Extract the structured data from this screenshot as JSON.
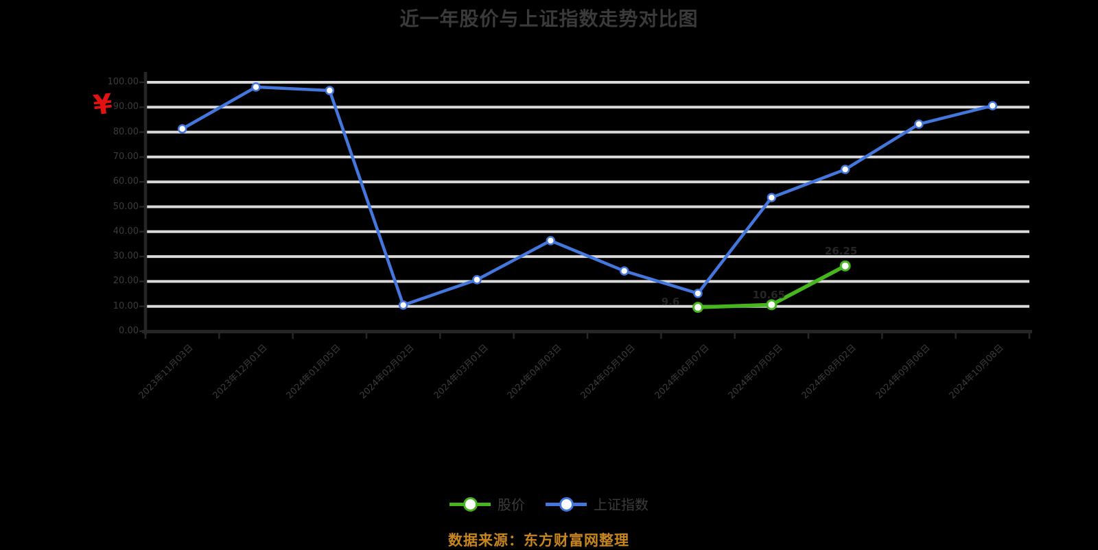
{
  "colors": {
    "background": "#000000",
    "grid": "#d9d9d9",
    "axis": "#262626",
    "text": "#3c3c3c",
    "title_text": "#3a3a3a",
    "data_label_text": "#262626",
    "footer_orange": "#c8861f",
    "currency_red": "#e21212",
    "series_green": "#47b51e",
    "series_blue": "#4477dd",
    "marker_fill": "#ffffff"
  },
  "chart_data": {
    "type": "line",
    "title": "近一年股价与上证指数走势对比图",
    "y_axis_symbol": "¥",
    "ylim": [
      0,
      100
    ],
    "y_ticks": [
      100,
      90,
      80,
      70,
      60,
      50,
      40,
      30,
      20,
      10,
      0
    ],
    "y_tick_labels": [
      "100.00",
      "90.00",
      "80.00",
      "70.00",
      "60.00",
      "50.00",
      "40.00",
      "30.00",
      "20.00",
      "10.00",
      "0.00"
    ],
    "grid": "horizontal",
    "legend_position": "bottom",
    "x": [
      "2023年11月03日",
      "2023年12月01日",
      "2024年01月05日",
      "2024年02月02日",
      "2024年03月01日",
      "2024年04月03日",
      "2024年05月10日",
      "2024年06月07日",
      "2024年07月05日",
      "2024年08月02日",
      "2024年09月06日",
      "2024年10月08日"
    ],
    "series": [
      {
        "name": "股价",
        "color_key": "series_green",
        "start_index": 7,
        "values": [
          9.6,
          10.65,
          26.25
        ],
        "data_labels": [
          "9.6",
          "10.65",
          "26.25"
        ]
      },
      {
        "name": "上证指数",
        "color_key": "series_blue",
        "start_index": 0,
        "values": [
          81.3,
          98.1,
          96.7,
          10.5,
          20.7,
          36.4,
          24.2,
          15.2,
          53.7,
          65.0,
          83.2,
          90.6
        ],
        "data_labels": []
      }
    ],
    "footer": "数据来源：东方财富网整理"
  }
}
